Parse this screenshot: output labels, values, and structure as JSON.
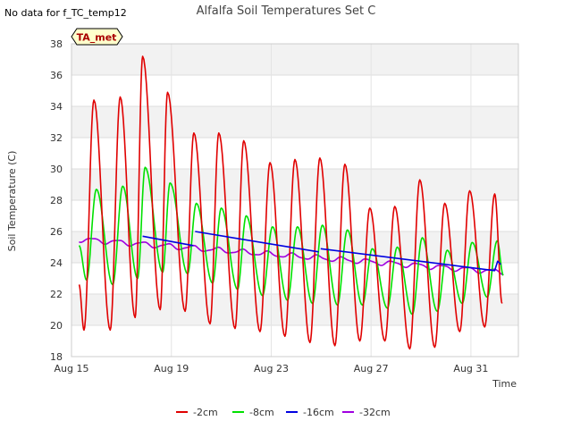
{
  "chart_data": {
    "type": "line",
    "title": "Alfalfa Soil Temperatures Set C",
    "corner_note": "No data for f_TC_temp12",
    "badge": "TA_met",
    "xlabel": "Time",
    "ylabel": "Soil Temperature (C)",
    "x_start": "Aug 15",
    "xlim": [
      0,
      17.9
    ],
    "ylim": [
      18,
      38
    ],
    "yticks": [
      18,
      20,
      22,
      24,
      26,
      28,
      30,
      32,
      34,
      36,
      38
    ],
    "xticks": [
      {
        "day": 0,
        "label": "Aug 15"
      },
      {
        "day": 4,
        "label": "Aug 19"
      },
      {
        "day": 8,
        "label": "Aug 23"
      },
      {
        "day": 12,
        "label": "Aug 27"
      },
      {
        "day": 16,
        "label": "Aug 31"
      }
    ],
    "grid": true,
    "legend_position": "bottom",
    "series": [
      {
        "name": "-2cm",
        "color": "#e00000",
        "kind": "diurnal",
        "peaks": [
          [
            0.9,
            34.4
          ],
          [
            1.95,
            34.6
          ],
          [
            2.85,
            37.2
          ],
          [
            3.85,
            34.9
          ],
          [
            4.9,
            32.3
          ],
          [
            5.9,
            32.3
          ],
          [
            6.9,
            31.8
          ],
          [
            7.95,
            30.4
          ],
          [
            8.95,
            30.6
          ],
          [
            9.95,
            30.7
          ],
          [
            10.95,
            30.3
          ],
          [
            11.95,
            27.5
          ],
          [
            12.95,
            27.6
          ],
          [
            13.95,
            29.3
          ],
          [
            14.95,
            27.8
          ],
          [
            15.95,
            28.6
          ],
          [
            16.95,
            28.4
          ]
        ],
        "troughs": [
          [
            0.3,
            22.6
          ],
          [
            0.5,
            19.7
          ],
          [
            1.55,
            19.7
          ],
          [
            2.55,
            20.5
          ],
          [
            3.55,
            21.0
          ],
          [
            4.55,
            20.9
          ],
          [
            5.55,
            20.1
          ],
          [
            6.55,
            19.8
          ],
          [
            7.55,
            19.6
          ],
          [
            8.55,
            19.3
          ],
          [
            9.55,
            18.9
          ],
          [
            10.55,
            18.7
          ],
          [
            11.55,
            19.0
          ],
          [
            12.55,
            19.0
          ],
          [
            13.55,
            18.5
          ],
          [
            14.55,
            18.6
          ],
          [
            15.55,
            19.6
          ],
          [
            16.55,
            19.9
          ],
          [
            17.25,
            21.4
          ]
        ]
      },
      {
        "name": "-8cm",
        "color": "#00e000",
        "kind": "diurnal",
        "peaks": [
          [
            1.0,
            28.7
          ],
          [
            2.05,
            28.9
          ],
          [
            2.95,
            30.1
          ],
          [
            3.95,
            29.1
          ],
          [
            5.0,
            27.8
          ],
          [
            6.0,
            27.5
          ],
          [
            7.0,
            27.0
          ],
          [
            8.05,
            26.3
          ],
          [
            9.05,
            26.3
          ],
          [
            10.05,
            26.4
          ],
          [
            11.05,
            26.1
          ],
          [
            12.05,
            24.9
          ],
          [
            13.05,
            25.0
          ],
          [
            14.05,
            25.6
          ],
          [
            15.05,
            24.8
          ],
          [
            16.05,
            25.3
          ],
          [
            17.05,
            25.4
          ]
        ],
        "troughs": [
          [
            0.3,
            25.1
          ],
          [
            0.6,
            22.9
          ],
          [
            1.65,
            22.6
          ],
          [
            2.65,
            23.0
          ],
          [
            3.65,
            23.4
          ],
          [
            4.65,
            23.3
          ],
          [
            5.65,
            22.7
          ],
          [
            6.65,
            22.3
          ],
          [
            7.65,
            21.9
          ],
          [
            8.65,
            21.6
          ],
          [
            9.65,
            21.4
          ],
          [
            10.65,
            21.3
          ],
          [
            11.65,
            21.3
          ],
          [
            12.65,
            21.1
          ],
          [
            13.65,
            20.7
          ],
          [
            14.65,
            20.9
          ],
          [
            15.65,
            21.4
          ],
          [
            16.65,
            21.8
          ],
          [
            17.3,
            23.2
          ]
        ]
      },
      {
        "name": "-16cm",
        "color": "#0000e0",
        "kind": "piecewise",
        "segments": [
          [
            [
              2.85,
              25.7
            ],
            [
              4.88,
              25.1
            ]
          ],
          [
            [
              4.95,
              26.0
            ],
            [
              9.9,
              24.7
            ]
          ],
          [
            [
              9.98,
              24.9
            ],
            [
              16.95,
              23.5
            ],
            [
              17.07,
              24.1
            ],
            [
              17.2,
              23.9
            ]
          ]
        ]
      },
      {
        "name": "-32cm",
        "color": "#a000e0",
        "kind": "trend",
        "x_range": [
          0.3,
          17.3
        ],
        "start_value": 25.5,
        "end_value": 23.4,
        "daily_amplitude": 0.15
      }
    ]
  }
}
